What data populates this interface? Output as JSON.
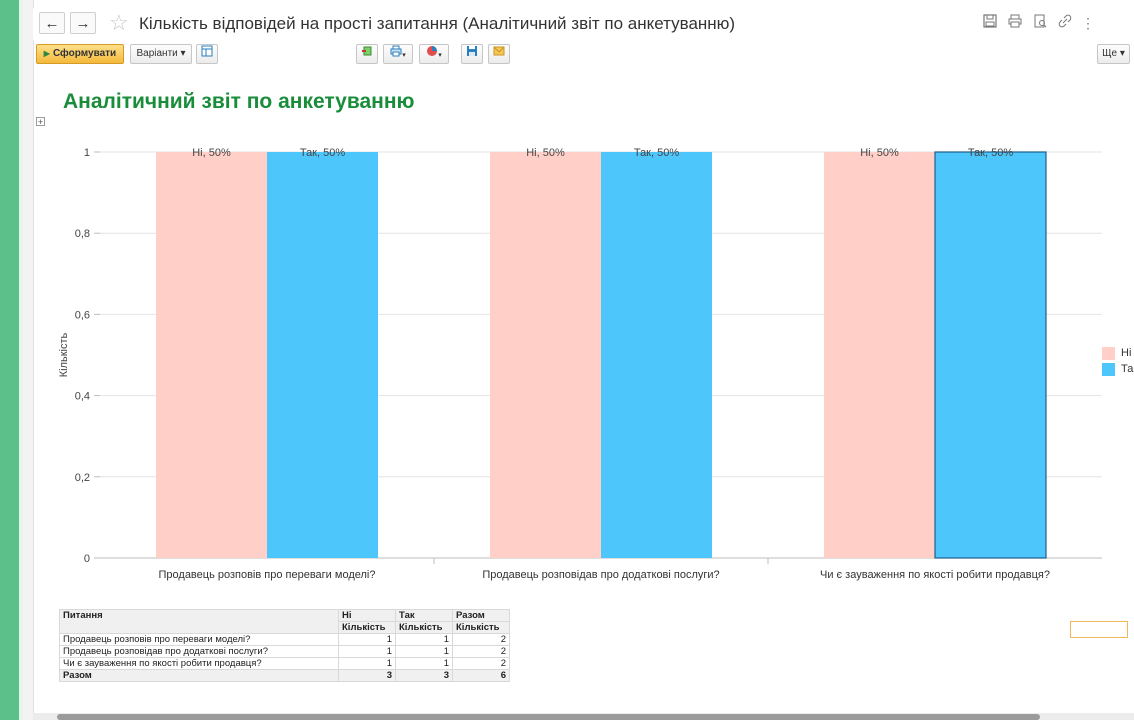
{
  "window": {
    "title": "Кількість відповідей на прості запитання (Аналітичний звіт по анкетуванню)",
    "back_icon": "←",
    "forward_icon": "→",
    "star_icon": "☆",
    "more_icon": "⋮"
  },
  "toolbar": {
    "generate_label": "Сформувати",
    "variants_label": "Варіанти ▾",
    "more_label": "Ще ▾"
  },
  "report": {
    "title": "Аналітичний звіт по анкетуванню"
  },
  "colors": {
    "no": "#ffcfc8",
    "yes": "#4dc6fc",
    "title_green": "#1a8d3a",
    "accent_green": "#5cc08a"
  },
  "chart_data": {
    "type": "bar",
    "ylabel": "Кількість",
    "xlabel": "",
    "ylim": [
      0,
      1
    ],
    "yticks": [
      "0",
      "0,2",
      "0,4",
      "0,6",
      "0,8",
      "1"
    ],
    "categories": [
      "Продавець розповів про переваги моделі?",
      "Продавець розповідав про додаткові послуги?",
      "Чи є зауваження по якості робити продавця?"
    ],
    "series": [
      {
        "name": "Ні",
        "values": [
          1,
          1,
          1
        ],
        "labels": [
          "Ні, 50%",
          "Ні, 50%",
          "Ні, 50%"
        ]
      },
      {
        "name": "Так",
        "values": [
          1,
          1,
          1
        ],
        "labels": [
          "Так, 50%",
          "Так, 50%",
          "Так, 50%"
        ]
      }
    ],
    "legend": {
      "position": "right",
      "items": [
        "Ні",
        "Так"
      ]
    },
    "grid": true
  },
  "table": {
    "headers": {
      "question": "Питання",
      "no": "Ні",
      "yes": "Так",
      "total": "Разом",
      "count": "Кількість"
    },
    "rows": [
      {
        "question": "Продавець розповів про переваги моделі?",
        "no": "1",
        "yes": "1",
        "total": "2"
      },
      {
        "question": "Продавець розповідав про додаткові послуги?",
        "no": "1",
        "yes": "1",
        "total": "2"
      },
      {
        "question": "Чи є зауваження по якості робити продавця?",
        "no": "1",
        "yes": "1",
        "total": "2"
      }
    ],
    "footer": {
      "label": "Разом",
      "no": "3",
      "yes": "3",
      "total": "6"
    }
  }
}
